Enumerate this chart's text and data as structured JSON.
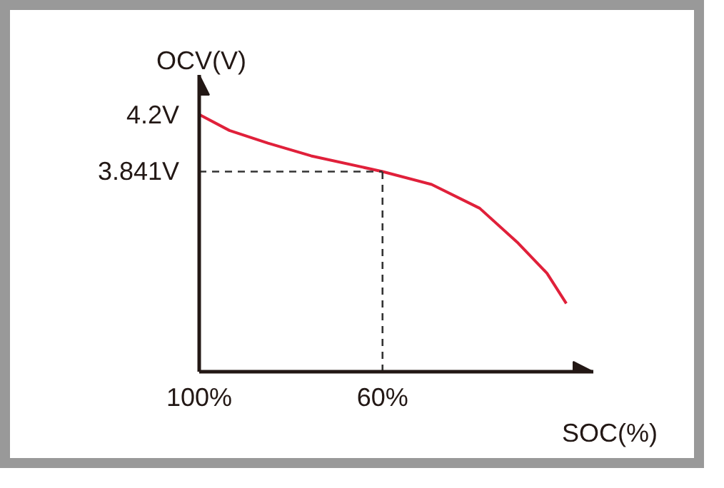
{
  "chart_data": {
    "type": "line",
    "xlabel": "SOC(%)",
    "ylabel": "OCV(V)",
    "x": [
      100,
      93.4,
      85,
      75.6,
      60,
      49.3,
      38.8,
      30.4,
      24.1,
      19.9
    ],
    "series": [
      {
        "color": "#e0203a",
        "values": [
          4.2,
          4.1,
          4.02,
          3.94,
          3.841,
          3.76,
          3.61,
          3.39,
          3.2,
          3.01
        ]
      }
    ],
    "xlim": [
      100,
      14
    ],
    "ylim": [
      2.58,
      4.45
    ],
    "xticks": [
      {
        "value": 100,
        "label": "100%"
      },
      {
        "value": 60,
        "label": "60%"
      }
    ],
    "yticks": [
      {
        "value": 4.2,
        "label": "4.2V"
      },
      {
        "value": 3.841,
        "label": "3.841V"
      }
    ],
    "ref_lines": [
      {
        "axis": "x",
        "value": 60,
        "line_style": "dashed",
        "color": "#333333"
      },
      {
        "axis": "y",
        "value": 3.841,
        "line_style": "dashed",
        "color": "#333333"
      }
    ],
    "grid": false,
    "marker": "none",
    "line_style": "solid"
  }
}
